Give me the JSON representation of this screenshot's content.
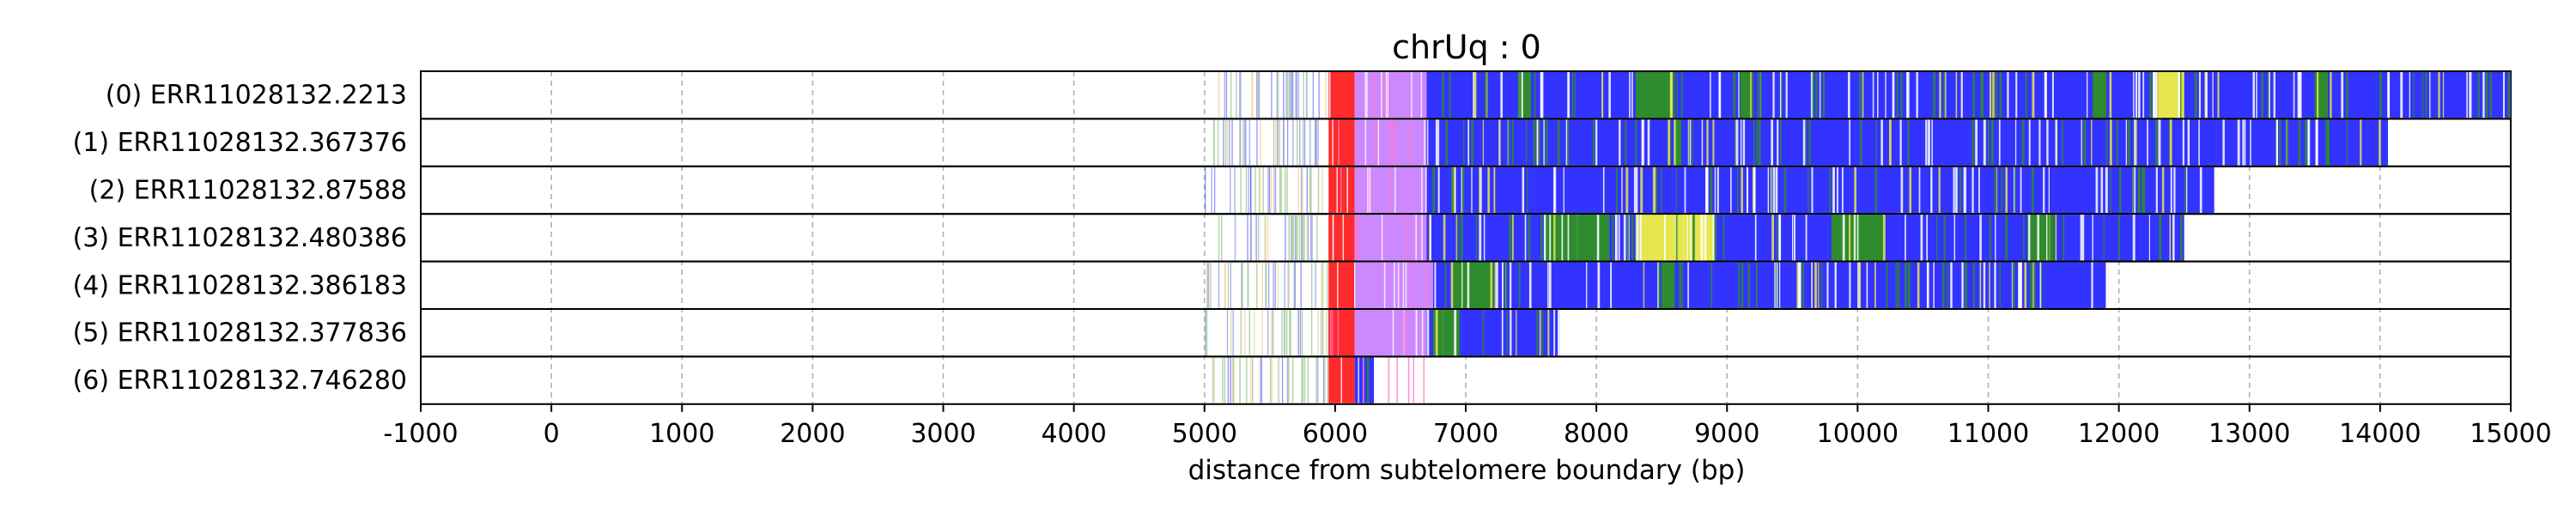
{
  "chart_data": {
    "type": "heatmap",
    "title": "chrUq : 0",
    "xlabel": "distance from subtelomere boundary (bp)",
    "ylabel": "",
    "xlim": [
      -1000,
      15000
    ],
    "x_ticks": [
      "-1000",
      "0",
      "1000",
      "2000",
      "3000",
      "4000",
      "5000",
      "6000",
      "7000",
      "8000",
      "9000",
      "10000",
      "11000",
      "12000",
      "13000",
      "14000",
      "15000"
    ],
    "x_tick_values": [
      -1000,
      0,
      1000,
      2000,
      3000,
      4000,
      5000,
      6000,
      7000,
      8000,
      9000,
      10000,
      11000,
      12000,
      13000,
      14000,
      15000
    ],
    "grid": "vertical dashed",
    "colors": {
      "blue": "#3333ff",
      "green": "#2e8b2e",
      "red": "#ff2a2a",
      "violet": "#cc88ff",
      "yellow": "#e6e64d",
      "light_green": "#a8cfa0",
      "light_blue": "#a0a8e8",
      "light_orange": "#f0d8a8"
    },
    "reads": [
      {
        "label": "(0) ERR11028132.2213",
        "start": 5000,
        "end": 15000
      },
      {
        "label": "(1) ERR11028132.367376",
        "start": 5000,
        "end": 14060
      },
      {
        "label": "(2) ERR11028132.87588",
        "start": 5000,
        "end": 12730
      },
      {
        "label": "(3) ERR11028132.480386",
        "start": 5000,
        "end": 12500
      },
      {
        "label": "(4) ERR11028132.386183",
        "start": 5000,
        "end": 11900
      },
      {
        "label": "(5) ERR11028132.377836",
        "start": 5000,
        "end": 7720
      },
      {
        "label": "(6) ERR11028132.746280",
        "start": 5000,
        "end": 6300
      }
    ],
    "blocks": [
      {
        "read": 0,
        "start": 5950,
        "end": 6150,
        "color": "red"
      },
      {
        "read": 0,
        "start": 6150,
        "end": 6700,
        "color": "violet"
      },
      {
        "read": 0,
        "start": 6700,
        "end": 15000,
        "color": "blue"
      },
      {
        "read": 0,
        "start": 7400,
        "end": 7500,
        "color": "green"
      },
      {
        "read": 0,
        "start": 8300,
        "end": 8600,
        "color": "green"
      },
      {
        "read": 0,
        "start": 9100,
        "end": 9200,
        "color": "green"
      },
      {
        "read": 0,
        "start": 11800,
        "end": 11900,
        "color": "green"
      },
      {
        "read": 0,
        "start": 12300,
        "end": 12500,
        "color": "yellow"
      },
      {
        "read": 0,
        "start": 13500,
        "end": 13600,
        "color": "green"
      },
      {
        "read": 1,
        "start": 5950,
        "end": 6150,
        "color": "red"
      },
      {
        "read": 1,
        "start": 6150,
        "end": 6700,
        "color": "violet"
      },
      {
        "read": 1,
        "start": 6700,
        "end": 14060,
        "color": "blue"
      },
      {
        "read": 1,
        "start": 8600,
        "end": 8650,
        "color": "green"
      },
      {
        "read": 2,
        "start": 5950,
        "end": 6150,
        "color": "red"
      },
      {
        "read": 2,
        "start": 6150,
        "end": 6700,
        "color": "violet"
      },
      {
        "read": 2,
        "start": 6700,
        "end": 12730,
        "color": "blue"
      },
      {
        "read": 3,
        "start": 5950,
        "end": 6150,
        "color": "red"
      },
      {
        "read": 3,
        "start": 6150,
        "end": 6700,
        "color": "violet"
      },
      {
        "read": 3,
        "start": 6700,
        "end": 12500,
        "color": "blue"
      },
      {
        "read": 3,
        "start": 7600,
        "end": 8100,
        "color": "green"
      },
      {
        "read": 3,
        "start": 8300,
        "end": 8900,
        "color": "yellow"
      },
      {
        "read": 3,
        "start": 9800,
        "end": 10200,
        "color": "green"
      },
      {
        "read": 3,
        "start": 11300,
        "end": 11500,
        "color": "green"
      },
      {
        "read": 4,
        "start": 5950,
        "end": 6150,
        "color": "red"
      },
      {
        "read": 4,
        "start": 6150,
        "end": 6750,
        "color": "violet"
      },
      {
        "read": 4,
        "start": 6750,
        "end": 11900,
        "color": "blue"
      },
      {
        "read": 4,
        "start": 6900,
        "end": 7200,
        "color": "green"
      },
      {
        "read": 4,
        "start": 8500,
        "end": 8600,
        "color": "green"
      },
      {
        "read": 5,
        "start": 5950,
        "end": 6150,
        "color": "red"
      },
      {
        "read": 5,
        "start": 6150,
        "end": 6700,
        "color": "violet"
      },
      {
        "read": 5,
        "start": 6700,
        "end": 7720,
        "color": "blue"
      },
      {
        "read": 5,
        "start": 6750,
        "end": 6950,
        "color": "green"
      },
      {
        "read": 6,
        "start": 5950,
        "end": 6150,
        "color": "red"
      },
      {
        "read": 6,
        "start": 6150,
        "end": 6300,
        "color": "blue"
      }
    ]
  }
}
